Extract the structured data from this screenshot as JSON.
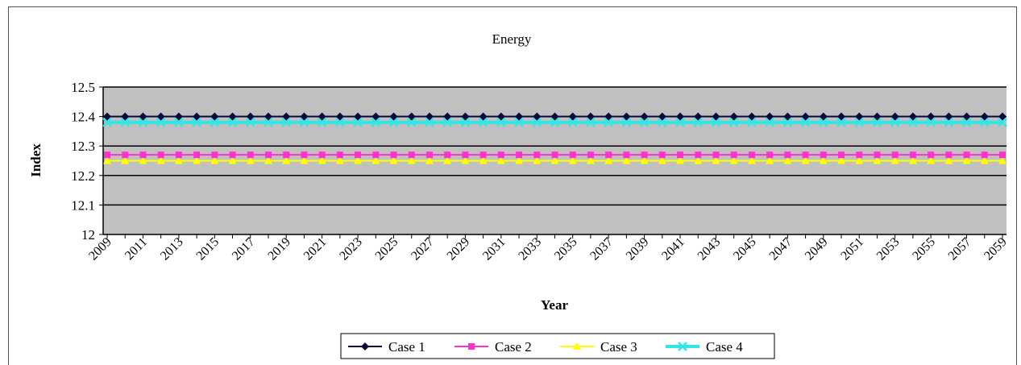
{
  "chart_data": {
    "type": "line",
    "title": "Energy",
    "xlabel": "Year",
    "ylabel": "Index",
    "x_start": 2009,
    "x_end": 2059,
    "x_tick_labels": [
      "2009",
      "2011",
      "2013",
      "2015",
      "2017",
      "2019",
      "2021",
      "2023",
      "2025",
      "2027",
      "2029",
      "2031",
      "2033",
      "2035",
      "2037",
      "2039",
      "2041",
      "2043",
      "2045",
      "2047",
      "2049",
      "2051",
      "2053",
      "2055",
      "2057",
      "2059"
    ],
    "ylim": [
      12,
      12.5
    ],
    "y_ticks": [
      "12",
      "12.1",
      "12.2",
      "12.3",
      "12.4",
      "12.5"
    ],
    "grid": true,
    "legend_position": "bottom",
    "plot_background": "#c0c0c0",
    "series": [
      {
        "name": "Case 1",
        "value": 12.4,
        "color": "#0a0a3a",
        "marker": "diamond"
      },
      {
        "name": "Case 2",
        "value": 12.27,
        "color": "#ff33cc",
        "marker": "square"
      },
      {
        "name": "Case 3",
        "value": 12.25,
        "color": "#ffff00",
        "marker": "triangle"
      },
      {
        "name": "Case 4",
        "value": 12.38,
        "color": "#33e6e6",
        "marker": "x"
      }
    ]
  }
}
